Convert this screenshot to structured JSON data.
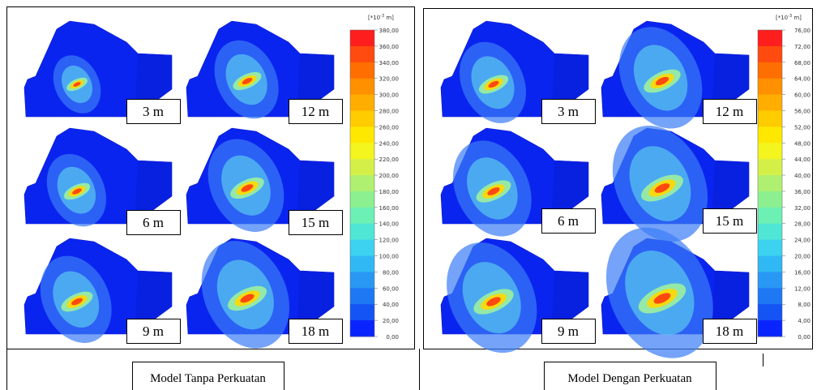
{
  "panels": [
    {
      "unit": {
        "base": "[*10",
        "exp": "-3",
        "rest": " m]"
      },
      "scale": [
        "380,00",
        "360,00",
        "340,00",
        "320,00",
        "300,00",
        "280,00",
        "260,00",
        "240,00",
        "220,00",
        "200,00",
        "180,00",
        "160,00",
        "140,00",
        "120,00",
        "100,00",
        "80,00",
        "60,00",
        "40,00",
        "20,00",
        "0,00"
      ],
      "depths": [
        "3 m",
        "12 m",
        "6 m",
        "15 m",
        "9 m",
        "18 m"
      ],
      "caption": "Model Tanpa Perkuatan"
    },
    {
      "unit": {
        "base": "[*10",
        "exp": "-3",
        "rest": " m]"
      },
      "scale": [
        "76,00",
        "72,00",
        "68,00",
        "64,00",
        "60,00",
        "56,00",
        "52,00",
        "48,00",
        "44,00",
        "40,00",
        "36,00",
        "32,00",
        "28,00",
        "24,00",
        "20,00",
        "16,00",
        "12,00",
        "8,00",
        "4,00",
        "0,00"
      ],
      "depths": [
        "3 m",
        "12 m",
        "6 m",
        "15 m",
        "9 m",
        "18 m"
      ],
      "caption": "Model Dengan Perkuatan"
    }
  ]
}
